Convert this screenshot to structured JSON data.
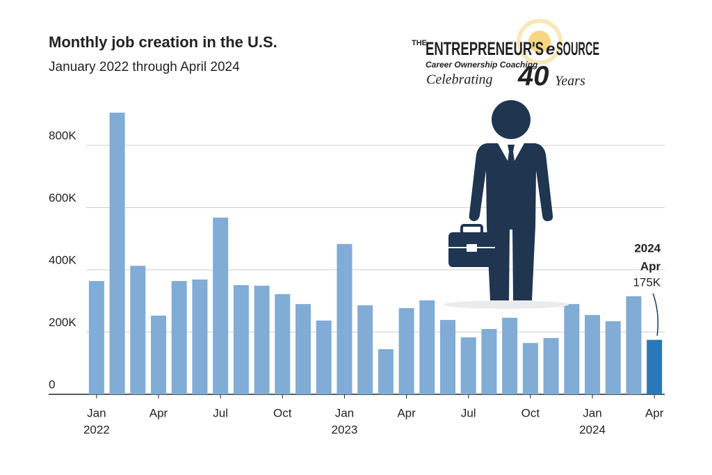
{
  "chart_data": {
    "type": "bar",
    "title": "Monthly job creation in the U.S.",
    "subtitle": "January 2022 through April 2024",
    "categories": [
      "Jan",
      null,
      null,
      "Apr",
      null,
      null,
      "Jul",
      null,
      null,
      "Oct",
      null,
      null,
      "Jan",
      null,
      null,
      "Apr",
      null,
      null,
      "Jul",
      null,
      null,
      "Oct",
      null,
      null,
      "Jan",
      null,
      null,
      "Apr"
    ],
    "category_years": [
      "2022",
      null,
      null,
      null,
      null,
      null,
      null,
      null,
      null,
      null,
      null,
      null,
      "2023",
      null,
      null,
      null,
      null,
      null,
      null,
      null,
      null,
      null,
      null,
      null,
      "2024",
      null,
      null,
      null
    ],
    "values": [
      364,
      905,
      413,
      253,
      364,
      369,
      568,
      351,
      349,
      322,
      290,
      237,
      483,
      286,
      145,
      277,
      302,
      239,
      183,
      210,
      246,
      165,
      181,
      290,
      255,
      235,
      315,
      175
    ],
    "value_labels": [
      null,
      null,
      null,
      null,
      null,
      null,
      null,
      null,
      null,
      null,
      null,
      null,
      null,
      null,
      null,
      null,
      null,
      null,
      null,
      null,
      null,
      null,
      null,
      null,
      null,
      null,
      null,
      "175K"
    ],
    "highlight": {
      "year": "2024",
      "month": "Apr"
    },
    "color": "#80acd6",
    "highlight_color": "#2a78b7",
    "ylim": [
      0,
      1000
    ],
    "yticks": [
      0,
      {
        "value": 200,
        "label": "200K"
      },
      {
        "value": 400,
        "label": "400K"
      },
      {
        "value": 600,
        "label": "600K"
      },
      {
        "value": 800,
        "label": "800K"
      }
    ],
    "grid": true
  },
  "logo": {
    "prefix": "THE",
    "name": "ENTREPRENEUR'S",
    "mark": "e",
    "suffix": "SOURCE",
    "tagline": "Career Ownership Coaching",
    "celebrating": "Celebrating",
    "years_number": "40",
    "years_word": "Years"
  }
}
